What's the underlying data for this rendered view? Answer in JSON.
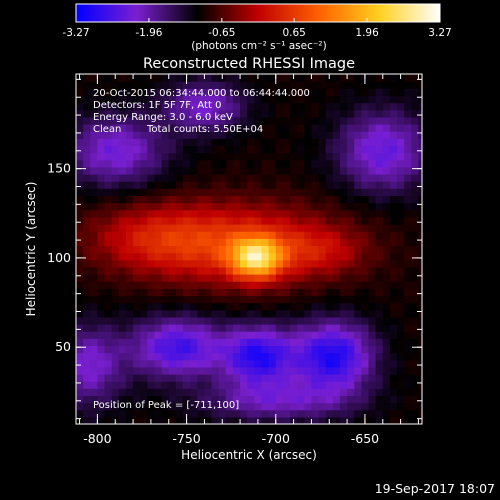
{
  "chart_data": {
    "type": "heatmap",
    "title": "Reconstructed RHESSI Image",
    "xlabel": "Heliocentric X (arcsec)",
    "ylabel": "Heliocentric Y (arcsec)",
    "xlim": [
      -812,
      -618
    ],
    "ylim": [
      7,
      203
    ],
    "x_ticks": [
      -800,
      -750,
      -700,
      -650
    ],
    "y_ticks": [
      50,
      100,
      150
    ],
    "colorbar": {
      "min": -3.27,
      "max": 3.27,
      "ticks": [
        "-3.27",
        "-1.96",
        "-0.65",
        "0.65",
        "1.96",
        "3.27"
      ],
      "units": "(photons cm⁻² s⁻¹ asec⁻²)",
      "colormap": [
        "#0000ff",
        "#7a1fd0",
        "#000000",
        "#c00000",
        "#ff6000",
        "#ffd020",
        "#ffffff"
      ]
    },
    "annotations": [
      "20-Oct-2015 06:34:44.000 to 06:44:44.000",
      "Detectors: 1F 5F 7F, Att 0",
      "Energy Range: 3.0 - 6.0 keV",
      "Clean",
      "Total counts: 5.50E+04"
    ],
    "peak_label": "Position of Peak = [-711,100]",
    "peak": {
      "x": -711,
      "y": 100,
      "value": 3.27
    },
    "sources": [
      {
        "x": -711,
        "y": 100,
        "sx": 10,
        "sy": 8,
        "amp": 2.6
      },
      {
        "x": -722,
        "y": 108,
        "sx": 40,
        "sy": 16,
        "amp": 1.5
      },
      {
        "x": -770,
        "y": 112,
        "sx": 26,
        "sy": 13,
        "amp": 0.8
      },
      {
        "x": -675,
        "y": 104,
        "sx": 18,
        "sy": 9,
        "amp": 0.6
      },
      {
        "x": -755,
        "y": 50,
        "sx": 18,
        "sy": 12,
        "amp": -1.7
      },
      {
        "x": -710,
        "y": 45,
        "sx": 14,
        "sy": 12,
        "amp": -1.9
      },
      {
        "x": -668,
        "y": 45,
        "sx": 16,
        "sy": 14,
        "amp": -2.0
      },
      {
        "x": -805,
        "y": 40,
        "sx": 14,
        "sy": 16,
        "amp": -1.2
      },
      {
        "x": -790,
        "y": 160,
        "sx": 20,
        "sy": 14,
        "amp": -1.3
      },
      {
        "x": -740,
        "y": 185,
        "sx": 16,
        "sy": 10,
        "amp": -1.2
      },
      {
        "x": -640,
        "y": 160,
        "sx": 18,
        "sy": 16,
        "amp": -1.4
      },
      {
        "x": -700,
        "y": 20,
        "sx": 30,
        "sy": 8,
        "amp": -1.0
      }
    ],
    "background": -1.0
  },
  "footer": {
    "timestamp": "19-Sep-2017 18:07"
  }
}
